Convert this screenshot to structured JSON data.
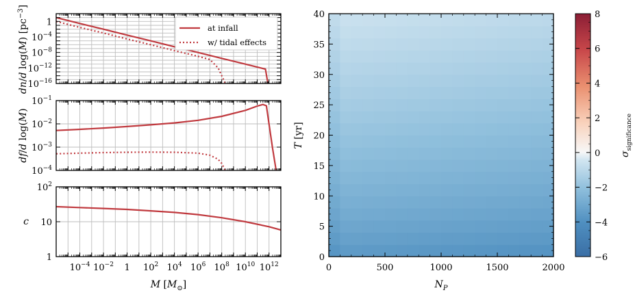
{
  "chart_data": [
    {
      "type": "line",
      "panel": "top-left",
      "xscale": "log",
      "yscale": "log",
      "xlim": [
        1e-06,
        10000000000000.0
      ],
      "ylim": [
        1e-16,
        100.0
      ],
      "xlabel": "",
      "ylabel": "dn/d log(M) [pc^-3]",
      "ytick_labels": [
        "1",
        "10^-4",
        "10^-8",
        "10^-12",
        "10^-16"
      ],
      "ytick_values": [
        1,
        0.0001,
        1e-08,
        1e-12,
        1e-16
      ],
      "grid": true,
      "legend": {
        "placement": "top-right",
        "entries": [
          "at infall",
          "w/ tidal effects"
        ]
      },
      "series": [
        {
          "name": "at infall",
          "style": "solid",
          "color": "#c0393e",
          "x": [
            1e-06,
            0.0001,
            0.01,
            1,
            100.0,
            10000.0,
            1000000.0,
            100000000.0,
            10000000000.0,
            200000000000.0,
            500000000000.0,
            800000000000.0
          ],
          "y": [
            10,
            0.3,
            0.01,
            0.0003,
            1e-05,
            3e-07,
            1e-08,
            3e-10,
            1e-11,
            1e-12,
            5e-13,
            1e-16
          ]
        },
        {
          "name": "w/ tidal effects",
          "style": "dotted",
          "color": "#c0393e",
          "x": [
            1e-06,
            0.0001,
            0.01,
            1,
            100.0,
            10000.0,
            1000000.0,
            10000000.0,
            50000000.0,
            200000000.0
          ],
          "y": [
            1,
            0.03,
            0.001,
            3e-05,
            1e-06,
            3e-08,
            1e-09,
            1.5e-10,
            1e-12,
            1e-16
          ]
        }
      ]
    },
    {
      "type": "line",
      "panel": "middle-left",
      "xscale": "log",
      "yscale": "log",
      "xlim": [
        1e-06,
        10000000000000.0
      ],
      "ylim": [
        0.0001,
        0.1
      ],
      "ylabel": "df/d log(M)",
      "ytick_labels": [
        "10^-1",
        "10^-2",
        "10^-3",
        "10^-4"
      ],
      "ytick_values": [
        0.1,
        0.01,
        0.001,
        0.0001
      ],
      "grid": true,
      "series": [
        {
          "name": "at infall",
          "style": "solid",
          "color": "#c0393e",
          "x": [
            1e-06,
            0.0001,
            0.01,
            1,
            100.0,
            10000.0,
            1000000.0,
            100000000.0,
            10000000000.0,
            100000000000.0,
            300000000000.0,
            600000000000.0,
            1000000000000.0,
            2000000000000.0,
            4000000000000.0
          ],
          "y": [
            0.0052,
            0.0058,
            0.0066,
            0.0077,
            0.0091,
            0.011,
            0.0142,
            0.021,
            0.038,
            0.058,
            0.068,
            0.06,
            0.01,
            0.0009,
            0.0001
          ]
        },
        {
          "name": "w/ tidal effects",
          "style": "dotted",
          "color": "#c0393e",
          "x": [
            1e-06,
            0.0001,
            0.01,
            1,
            100.0,
            10000.0,
            1000000.0,
            10000000.0,
            50000000.0,
            100000000.0,
            200000000.0
          ],
          "y": [
            0.00052,
            0.00055,
            0.00058,
            0.0006,
            0.00061,
            0.0006,
            0.00055,
            0.00045,
            0.0003,
            0.0002,
            0.0001
          ]
        }
      ]
    },
    {
      "type": "line",
      "panel": "bottom-left",
      "xscale": "log",
      "yscale": "log",
      "xlim": [
        1e-06,
        10000000000000.0
      ],
      "ylim": [
        1,
        100
      ],
      "xlabel": "M [M⊙]",
      "ylabel": "c",
      "ytick_labels": [
        "10^2",
        "10",
        "1"
      ],
      "ytick_values": [
        100,
        10,
        1
      ],
      "xtick_labels": [
        "10^-4",
        "10^-2",
        "1",
        "10^2",
        "10^4",
        "10^6",
        "10^8",
        "10^10",
        "10^12"
      ],
      "xtick_values": [
        0.0001,
        0.01,
        1,
        100.0,
        10000.0,
        1000000.0,
        100000000.0,
        10000000000.0,
        1000000000000.0
      ],
      "grid": true,
      "series": [
        {
          "name": "at infall",
          "style": "solid",
          "color": "#c0393e",
          "x": [
            1e-06,
            0.0001,
            0.01,
            1,
            100.0,
            10000.0,
            1000000.0,
            100000000.0,
            10000000000.0,
            1000000000000.0,
            10000000000000.0
          ],
          "y": [
            27,
            25.5,
            24,
            22.5,
            20.5,
            18.5,
            16,
            13,
            10,
            7.2,
            5.8
          ]
        }
      ]
    },
    {
      "type": "heatmap",
      "panel": "right",
      "xlim": [
        0,
        2000
      ],
      "ylim": [
        0,
        40
      ],
      "xlabel": "N_P",
      "ylabel": "T [yr]",
      "xtick_values": [
        0,
        500,
        1000,
        1500,
        2000
      ],
      "xtick_labels": [
        "0",
        "500",
        "1000",
        "1500",
        "2000"
      ],
      "ytick_values": [
        0,
        5,
        10,
        15,
        20,
        25,
        30,
        35,
        40
      ],
      "ytick_labels": [
        "0",
        "5",
        "10",
        "15",
        "20",
        "25",
        "30",
        "35",
        "40"
      ],
      "nx": 20,
      "ny": 20,
      "value_model": "sigma ≈ -0.65 - 0.05*T/40*... (approx field, ranges -3.7 to -0.8)",
      "sigma_min_bottom": -3.7,
      "sigma_max_top": -0.8,
      "colormap": "RdBu_r",
      "colorbar": {
        "label": "σ_significance",
        "vmin": -6,
        "vmax": 8,
        "tick_values": [
          8,
          6,
          4,
          2,
          0,
          -2,
          -4,
          -6
        ],
        "tick_labels": [
          "8",
          "6",
          "4",
          "2",
          "0",
          "−2",
          "−4",
          "−6"
        ]
      }
    }
  ]
}
